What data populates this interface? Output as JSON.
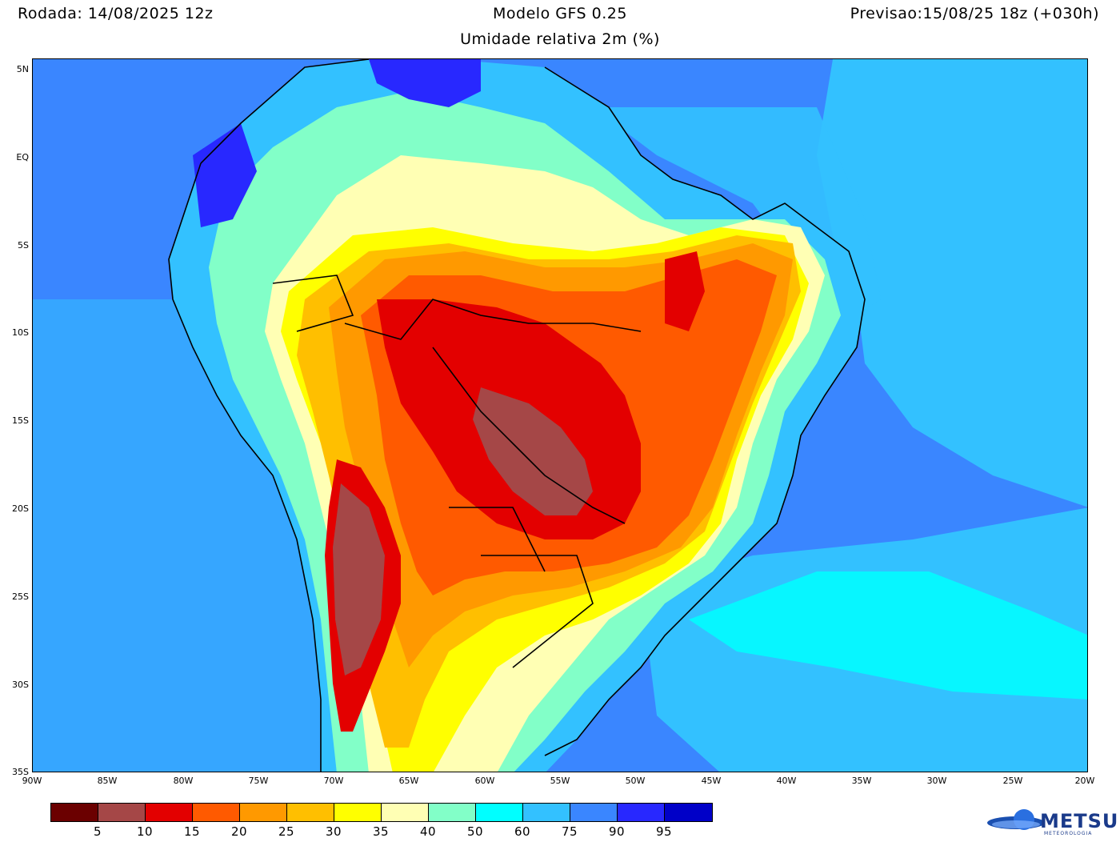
{
  "header": {
    "run": "Rodada: 14/08/2025 12z",
    "model": "Modelo GFS 0.25",
    "forecast": "Previsao:15/08/25 18z (+030h)",
    "variable": "Umidade relativa 2m (%)"
  },
  "axes": {
    "lat_labels": [
      "5N",
      "EQ",
      "5S",
      "10S",
      "15S",
      "20S",
      "25S",
      "30S",
      "35S"
    ],
    "lon_labels": [
      "90W",
      "85W",
      "80W",
      "75W",
      "70W",
      "65W",
      "60W",
      "55W",
      "50W",
      "45W",
      "40W",
      "35W",
      "30W",
      "25W",
      "20W"
    ],
    "lat_range": [
      -35,
      5.5
    ],
    "lon_range": [
      -90,
      -20
    ]
  },
  "legend": {
    "labels": [
      "5",
      "10",
      "15",
      "20",
      "25",
      "30",
      "35",
      "40",
      "50",
      "60",
      "75",
      "90",
      "95"
    ],
    "colors": [
      "#6b0000",
      "#a54747",
      "#e30000",
      "#ff5a00",
      "#ff9900",
      "#ffbf00",
      "#ffff00",
      "#ffffb4",
      "#82ffc8",
      "#00ffff",
      "#33c1ff",
      "#3a86ff",
      "#2828ff",
      "#0000c8"
    ]
  },
  "logo": {
    "name": "METSUL",
    "sub": "METEOROLOGIA"
  }
}
